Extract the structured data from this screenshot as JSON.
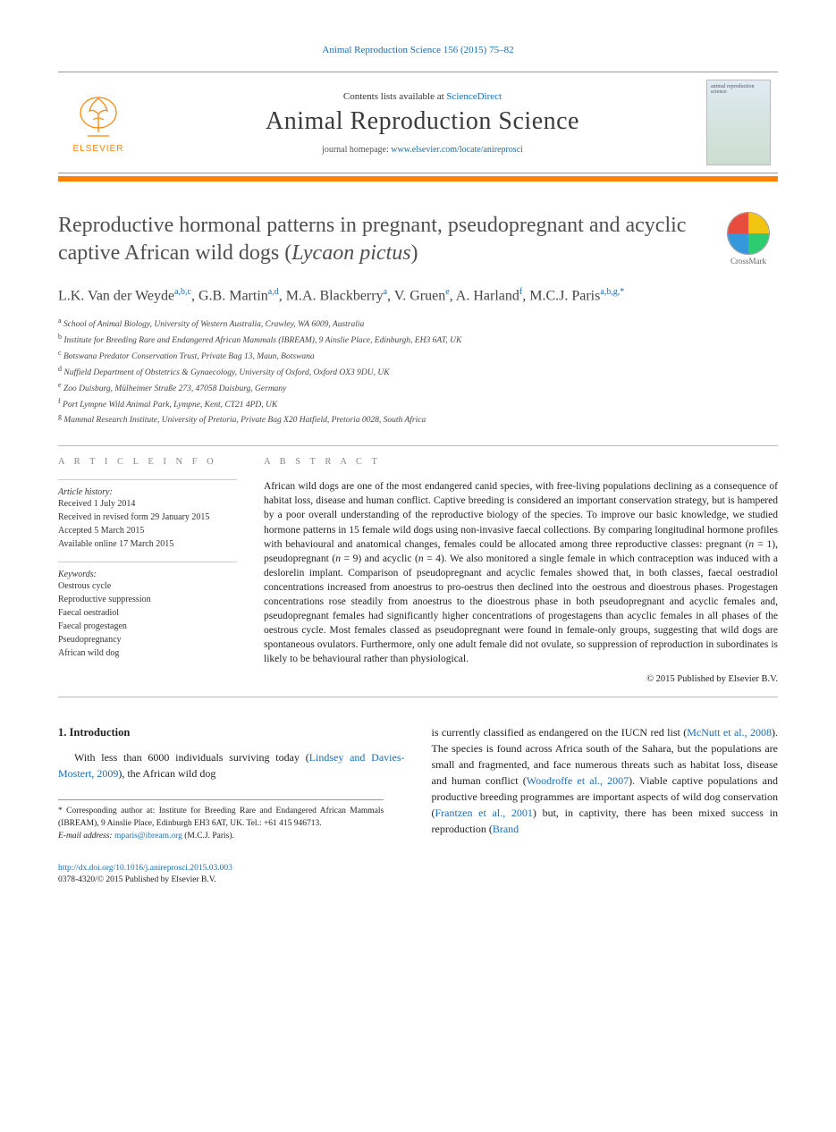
{
  "top": {
    "citation_link": "Animal Reproduction Science 156 (2015) 75–82",
    "contents_prefix": "Contents lists available at ",
    "contents_link": "ScienceDirect",
    "journal_title": "Animal Reproduction Science",
    "homepage_prefix": "journal homepage: ",
    "homepage_link": "www.elsevier.com/locate/anireprosci",
    "publisher_text": "ELSEVIER",
    "thumb_text": "animal reproduction science"
  },
  "crossmark": {
    "label": "CrossMark"
  },
  "article": {
    "title_plain": "Reproductive hormonal patterns in pregnant, pseudopregnant and acyclic captive African wild dogs (",
    "title_italic": "Lycaon pictus",
    "title_close": ")"
  },
  "authors_html": "L.K. Van der Weyde|a,b,c||, G.B. Martin|a,d||, M.A. Blackberry|a||, V. Gruen|e||, A. Harland|f||, M.C.J. Paris|a,b,g,*||",
  "affiliations": [
    "a School of Animal Biology, University of Western Australia, Crawley, WA 6009, Australia",
    "b Institute for Breeding Rare and Endangered African Mammals (IBREAM), 9 Ainslie Place, Edinburgh, EH3 6AT, UK",
    "c Botswana Predator Conservation Trust, Private Bag 13, Maun, Botswana",
    "d Nuffield Department of Obstetrics & Gynaecology, University of Oxford, Oxford OX3 9DU, UK",
    "e Zoo Duisburg, Mülheimer Straße 273, 47058 Duisburg, Germany",
    "f Port Lympne Wild Animal Park, Lympne, Kent, CT21 4PD, UK",
    "g Mammal Research Institute, University of Pretoria, Private Bag X20 Hatfield, Pretoria 0028, South Africa"
  ],
  "info": {
    "heading": "A R T I C L E   I N F O",
    "history_label": "Article history:",
    "history": [
      "Received 1 July 2014",
      "Received in revised form 29 January 2015",
      "Accepted 5 March 2015",
      "Available online 17 March 2015"
    ],
    "keywords_label": "Keywords:",
    "keywords": [
      "Oestrous cycle",
      "Reproductive suppression",
      "Faecal oestradiol",
      "Faecal progestagen",
      "Pseudopregnancy",
      "African wild dog"
    ]
  },
  "abstract": {
    "heading": "A B S T R A C T",
    "body_pre": "African wild dogs are one of the most endangered canid species, with free-living populations declining as a consequence of habitat loss, disease and human conflict. Captive breeding is considered an important conservation strategy, but is hampered by a poor overall understanding of the reproductive biology of the species. To improve our basic knowledge, we studied hormone patterns in 15 female wild dogs using non-invasive faecal collections. By comparing longitudinal hormone profiles with behavioural and anatomical changes, females could be allocated among three reproductive classes: pregnant (",
    "n1": "n",
    "eq1": " = 1), pseudopregnant (",
    "n2": "n",
    "eq2": " = 9) and acyclic (",
    "n3": "n",
    "eq3": " = 4). We also monitored a single female in which contraception was induced with a deslorelin implant. Comparison of pseudopregnant and acyclic females showed that, in both classes, faecal oestradiol concentrations increased from anoestrus to pro-oestrus then declined into the oestrous and dioestrous phases. Progestagen concentrations rose steadily from anoestrus to the dioestrous phase in both pseudopregnant and acyclic females and, pseudopregnant females had significantly higher concentrations of progestagens than acyclic females in all phases of the oestrous cycle. Most females classed as pseudopregnant were found in female-only groups, suggesting that wild dogs are spontaneous ovulators. Furthermore, only one adult female did not ovulate, so suppression of reproduction in subordinates is likely to be behavioural rather than physiological.",
    "copyright": "© 2015 Published by Elsevier B.V."
  },
  "intro": {
    "heading": "1.  Introduction",
    "col1_pre": "With less than 6000 individuals surviving today (",
    "col1_link": "Lindsey and Davies-Mostert, 2009",
    "col1_post": "), the African wild dog",
    "col2_pre": "is currently classified as endangered on the IUCN red list (",
    "col2_link1": "McNutt et al., 2008",
    "col2_mid1": "). The species is found across Africa south of the Sahara, but the populations are small and fragmented, and face numerous threats such as habitat loss, disease and human conflict (",
    "col2_link2": "Woodroffe et al., 2007",
    "col2_mid2": "). Viable captive populations and productive breeding programmes are important aspects of wild dog conservation (",
    "col2_link3": "Frantzen et al., 2001",
    "col2_mid3": ") but, in captivity, there has been mixed success in reproduction (",
    "col2_link4": "Brand"
  },
  "footnote": {
    "corr": "* Corresponding author at: Institute for Breeding Rare and Endangered African Mammals (IBREAM), 9 Ainslie Place, Edinburgh EH3 6AT, UK. Tel.: +61 415 946713.",
    "email_label": "E-mail address: ",
    "email": "mparis@ibream.org",
    "email_post": " (M.C.J. Paris)."
  },
  "footer": {
    "doi": "http://dx.doi.org/10.1016/j.anireprosci.2015.03.003",
    "issn_line": "0378-4320/© 2015 Published by Elsevier B.V."
  },
  "colors": {
    "link": "#1a6db3",
    "accent": "#ff8200",
    "rule": "#bbbbbb",
    "text": "#222222"
  }
}
